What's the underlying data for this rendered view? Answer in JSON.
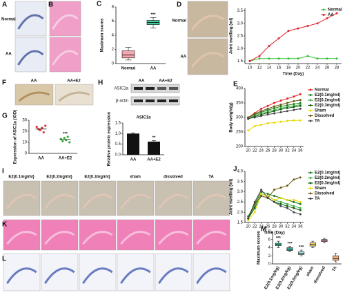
{
  "panel_letters": [
    "A",
    "B",
    "C",
    "D",
    "F",
    "G",
    "H",
    "E",
    "J",
    "I",
    "K",
    "L",
    "M"
  ],
  "image_labels": {
    "a_rows": [
      "Normal",
      "AA"
    ],
    "d_rows": [
      "Normal",
      "AA"
    ],
    "f": [
      "AA",
      "AA+E2"
    ],
    "h_blot_cols": [
      "AA",
      "AA+E2"
    ],
    "h_blot_rows": [
      "ASIC1a",
      "β-actin"
    ],
    "i": [
      "E2(0.1mg/ml)",
      "E2(0.2mg/ml)",
      "E2(0.3mg/ml)",
      "sham",
      "dissolved",
      "TA"
    ]
  },
  "chart_data": [
    {
      "type": "box",
      "ylabel": "Maximum scores",
      "categories": [
        "Normal",
        "AA"
      ],
      "boxes": [
        {
          "min": 0.5,
          "q1": 0.8,
          "median": 1.2,
          "q3": 1.8,
          "max": 2.3
        },
        {
          "min": 5.0,
          "q1": 5.5,
          "median": 5.8,
          "q3": 6.1,
          "max": 6.5
        }
      ],
      "colors": [
        "#f4a7b0",
        "#3dcc9a"
      ],
      "significance": [
        null,
        "***"
      ],
      "ylim": [
        0,
        8
      ],
      "yticks": [
        0,
        2,
        4,
        6,
        8
      ]
    },
    {
      "type": "line",
      "xlabel": "Time (Day)",
      "ylabel": "Joint swelling (ml)",
      "legend": "upper right",
      "x": [
        10,
        12,
        14,
        16,
        18,
        20,
        22,
        24,
        26,
        28
      ],
      "xlim": [
        9,
        29
      ],
      "xticks": [
        10,
        12,
        14,
        16,
        18,
        20,
        22,
        24,
        26,
        28
      ],
      "ylim": [
        1.4,
        3.6
      ],
      "yticks": [
        1.5,
        {
          "value": 2,
          "label": "2.0"
        },
        2.5,
        {
          "value": 3,
          "label": "3.0"
        },
        3.5
      ],
      "series": [
        {
          "name": "Normal",
          "color": "#2fbf2f",
          "values": [
            1.5,
            1.6,
            1.6,
            1.6,
            1.6,
            1.6,
            1.7,
            1.6,
            1.6,
            1.6
          ]
        },
        {
          "name": "AA",
          "color": "#e0202a",
          "values": [
            1.5,
            1.7,
            2.1,
            2.4,
            2.7,
            2.8,
            2.9,
            3.0,
            3.2,
            3.4
          ]
        }
      ]
    },
    {
      "type": "dot",
      "ylabel": "Expression of ASIC1a (IOD)",
      "categories": [
        "AA",
        "AA+E2"
      ],
      "points": [
        [
          24,
          22,
          21,
          23,
          19,
          25
        ],
        [
          13,
          11,
          14,
          12,
          15,
          10
        ]
      ],
      "means": [
        22,
        12.5
      ],
      "colors": [
        "#e03030",
        "#30b030"
      ],
      "significance": [
        null,
        "***"
      ],
      "ylim": [
        0,
        30
      ],
      "yticks": [
        0,
        10,
        20,
        30
      ]
    },
    {
      "type": "bar",
      "title": "ASIC1a",
      "ylabel": "Relative protein expression",
      "categories": [
        "AA",
        "AA+E2"
      ],
      "values": [
        1.0,
        0.62
      ],
      "errors": [
        0.03,
        0.05
      ],
      "color": "#111111",
      "significance": [
        null,
        "**"
      ],
      "ylim": [
        0,
        1.5
      ],
      "yticks": [
        {
          "value": 0,
          "label": "0.0"
        },
        0.5,
        {
          "value": 1,
          "label": "1.0"
        },
        1.5
      ]
    },
    {
      "type": "line",
      "ylabel": "Body weight(g)",
      "legend": "right",
      "x": [
        20,
        22,
        24,
        26,
        28,
        30,
        32,
        34,
        36
      ],
      "xlim": [
        19,
        37
      ],
      "xticks": [
        20,
        22,
        24,
        26,
        28,
        30,
        32,
        34,
        36
      ],
      "ylim": [
        200,
        400
      ],
      "yticks": [
        200,
        250,
        300,
        350,
        400
      ],
      "series": [
        {
          "name": "Normal",
          "color": "#e0202a",
          "values": [
            300,
            315,
            330,
            340,
            350,
            358,
            365,
            372,
            380
          ]
        },
        {
          "name": "E2(0.1mg/ml)",
          "color": "#1a7a1a",
          "values": [
            300,
            310,
            318,
            325,
            332,
            338,
            342,
            346,
            350
          ]
        },
        {
          "name": "E2(0.2mg/ml)",
          "color": "#3cb043",
          "values": [
            298,
            306,
            314,
            320,
            326,
            332,
            336,
            340,
            344
          ]
        },
        {
          "name": "E2(0.3mg/ml)",
          "color": "#0f5e0f",
          "values": [
            295,
            303,
            310,
            316,
            322,
            328,
            332,
            336,
            340
          ]
        },
        {
          "name": "Sham",
          "color": "#e8d800",
          "values": [
            255,
            270,
            275,
            280,
            282,
            285,
            288,
            290,
            290
          ]
        },
        {
          "name": "Dissolved",
          "color": "#6b5a10",
          "values": [
            300,
            312,
            322,
            330,
            338,
            344,
            350,
            356,
            360
          ]
        },
        {
          "name": "TA",
          "color": "#444444",
          "values": [
            296,
            300,
            305,
            310,
            314,
            318,
            322,
            326,
            330
          ]
        }
      ]
    },
    {
      "type": "line",
      "xlabel": "Time (Day)",
      "ylabel": "Joint swelling (ml)",
      "legend": "right",
      "x": [
        20,
        22,
        24,
        26,
        28,
        30,
        32,
        34,
        36
      ],
      "xlim": [
        19,
        37
      ],
      "xticks": [
        20,
        22,
        24,
        26,
        28,
        30,
        32,
        34,
        36
      ],
      "ylim": [
        1.5,
        4.0
      ],
      "yticks": [
        1.5,
        {
          "value": 2,
          "label": "2.0"
        },
        2.5,
        {
          "value": 3,
          "label": "3.0"
        },
        3.5,
        {
          "value": 4,
          "label": "4.0"
        }
      ],
      "series": [
        {
          "name": "E2(0.1mg/ml)",
          "color": "#1a7a1a",
          "values": [
            1.8,
            2.4,
            3.0,
            2.9,
            2.8,
            2.7,
            2.6,
            2.5,
            2.4
          ]
        },
        {
          "name": "E2(0.2mg/ml)",
          "color": "#3cb043",
          "values": [
            1.7,
            2.3,
            2.9,
            2.8,
            2.6,
            2.5,
            2.4,
            2.3,
            2.2
          ]
        },
        {
          "name": "E2(0.3mg/ml)",
          "color": "#0f5e0f",
          "values": [
            1.7,
            2.2,
            2.8,
            2.7,
            2.5,
            2.4,
            2.3,
            2.2,
            2.1
          ]
        },
        {
          "name": "Sham",
          "color": "#e8d800",
          "values": [
            1.6,
            2.0,
            2.9,
            2.8,
            2.6,
            2.7,
            2.6,
            2.6,
            2.5
          ]
        },
        {
          "name": "Dissolved",
          "color": "#6b5a10",
          "values": [
            1.7,
            2.4,
            2.8,
            2.7,
            3.1,
            3.2,
            3.3,
            3.6,
            3.7
          ]
        },
        {
          "name": "TA",
          "color": "#444444",
          "values": [
            1.7,
            2.5,
            3.1,
            2.7,
            2.5,
            2.3,
            2.2,
            2.0,
            1.9
          ]
        }
      ]
    },
    {
      "type": "box",
      "ylabel": "Maximum scores",
      "categories": [
        "E2(0.1mg/kg)",
        "E2(0.2mg/kg)",
        "E2(0.3mg/kg)",
        "sham",
        "dissolved",
        "TA"
      ],
      "boxes": [
        {
          "min": 4.0,
          "q1": 4.5,
          "median": 4.8,
          "q3": 5.1,
          "max": 5.6
        },
        {
          "min": 3.0,
          "q1": 3.3,
          "median": 3.6,
          "q3": 4.0,
          "max": 4.3
        },
        {
          "min": 2.0,
          "q1": 2.3,
          "median": 2.6,
          "q3": 3.0,
          "max": 3.4
        },
        {
          "min": 4.0,
          "q1": 4.4,
          "median": 4.8,
          "q3": 5.2,
          "max": 5.6
        },
        {
          "min": 5.2,
          "q1": 5.5,
          "median": 5.8,
          "q3": 6.0,
          "max": 6.3
        },
        {
          "min": 0.5,
          "q1": 0.9,
          "median": 1.3,
          "q3": 2.0,
          "max": 2.6
        }
      ],
      "colors": [
        "#3dcc9a",
        "#3ab8a8",
        "#9fdcd8",
        "#f0d070",
        "#f4a7b0",
        "#f4b080"
      ],
      "significance": [
        "***",
        "***",
        "***",
        null,
        null,
        null
      ],
      "ylim": [
        0,
        8
      ],
      "yticks": [
        0,
        2,
        4,
        6,
        8
      ]
    }
  ]
}
